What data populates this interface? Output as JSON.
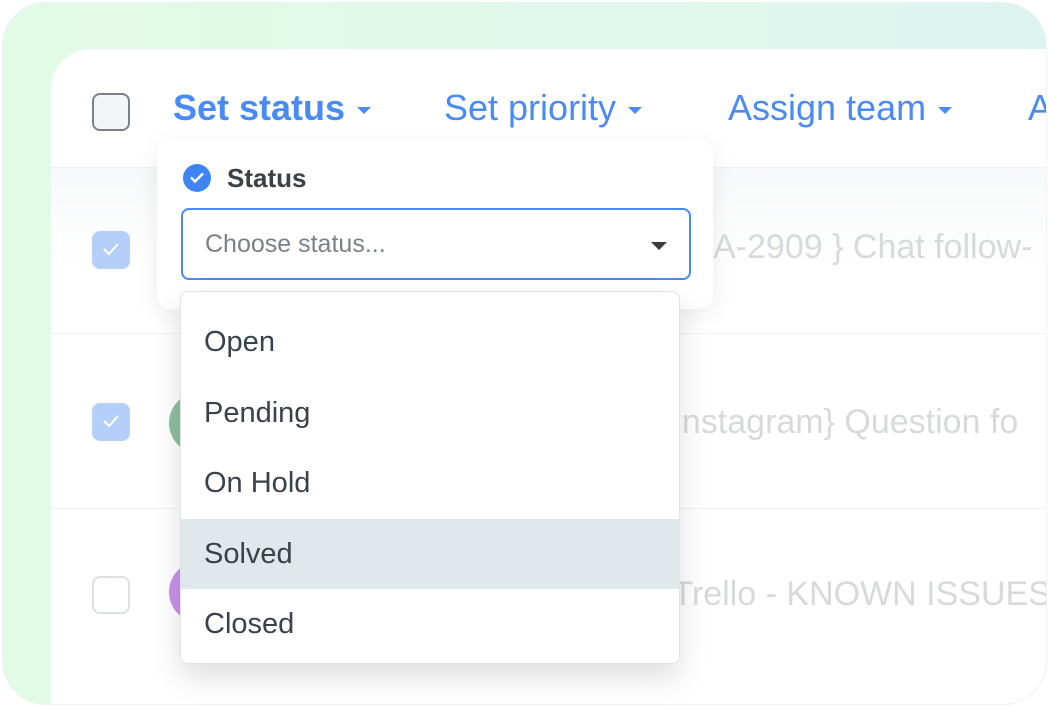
{
  "toolbar": {
    "set_status": "Set status",
    "set_priority": "Set priority",
    "assign_team": "Assign team",
    "more": "A"
  },
  "rows": [
    {
      "checked": true,
      "text": "A-2909 } Chat follow-"
    },
    {
      "checked": true,
      "text": "[Instagram} Question fo",
      "avatar_color": "#8fbf9f"
    },
    {
      "checked": false,
      "text": "[Trello - KNOWN ISSUES",
      "avatar_color": "#c792ea"
    }
  ],
  "status_popover": {
    "title": "Status",
    "placeholder": "Choose status...",
    "options": [
      "Open",
      "Pending",
      "On Hold",
      "Solved",
      "Closed"
    ],
    "highlighted": "Solved"
  },
  "colors": {
    "accent": "#4a8af4",
    "highlight": "#e1e8eb"
  }
}
